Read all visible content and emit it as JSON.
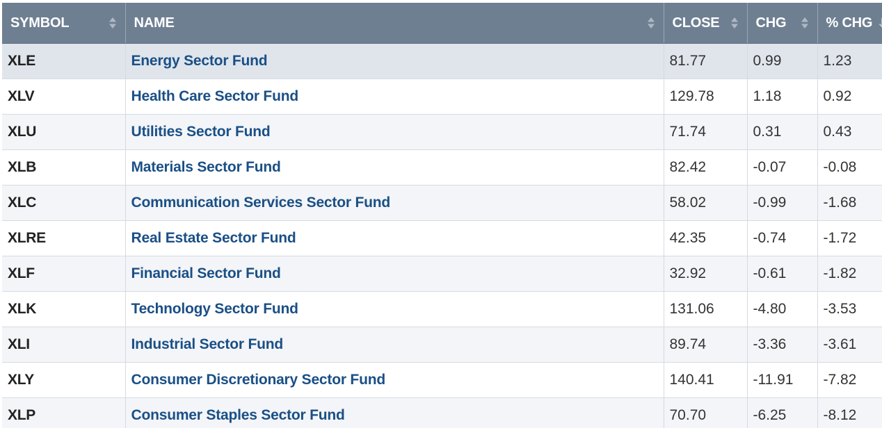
{
  "table": {
    "columns": [
      {
        "key": "symbol",
        "label": "SYMBOL",
        "sort_icon": "sort-both-icon"
      },
      {
        "key": "name",
        "label": "NAME",
        "sort_icon": "sort-both-icon"
      },
      {
        "key": "close",
        "label": "CLOSE",
        "sort_icon": "sort-both-icon"
      },
      {
        "key": "chg",
        "label": "CHG",
        "sort_icon": "sort-both-icon"
      },
      {
        "key": "pchg",
        "label": "% CHG",
        "sort_icon": "sort-desc-icon"
      }
    ],
    "rows": [
      {
        "symbol": "XLE",
        "name": "Energy Sector Fund",
        "close": "81.77",
        "chg": "0.99",
        "pchg": "1.23"
      },
      {
        "symbol": "XLV",
        "name": "Health Care Sector Fund",
        "close": "129.78",
        "chg": "1.18",
        "pchg": "0.92"
      },
      {
        "symbol": "XLU",
        "name": "Utilities Sector Fund",
        "close": "71.74",
        "chg": "0.31",
        "pchg": "0.43"
      },
      {
        "symbol": "XLB",
        "name": "Materials Sector Fund",
        "close": "82.42",
        "chg": "-0.07",
        "pchg": "-0.08"
      },
      {
        "symbol": "XLC",
        "name": "Communication Services Sector Fund",
        "close": "58.02",
        "chg": "-0.99",
        "pchg": "-1.68"
      },
      {
        "symbol": "XLRE",
        "name": "Real Estate Sector Fund",
        "close": "42.35",
        "chg": "-0.74",
        "pchg": "-1.72"
      },
      {
        "symbol": "XLF",
        "name": "Financial Sector Fund",
        "close": "32.92",
        "chg": "-0.61",
        "pchg": "-1.82"
      },
      {
        "symbol": "XLK",
        "name": "Technology Sector Fund",
        "close": "131.06",
        "chg": "-4.80",
        "pchg": "-3.53"
      },
      {
        "symbol": "XLI",
        "name": "Industrial Sector Fund",
        "close": "89.74",
        "chg": "-3.36",
        "pchg": "-3.61"
      },
      {
        "symbol": "XLY",
        "name": "Consumer Discretionary Sector Fund",
        "close": "140.41",
        "chg": "-11.91",
        "pchg": "-7.82"
      },
      {
        "symbol": "XLP",
        "name": "Consumer Staples Sector Fund",
        "close": "70.70",
        "chg": "-6.25",
        "pchg": "-8.12"
      }
    ]
  },
  "colors": {
    "header_bg": "#6f7f92",
    "header_text": "#ffffff",
    "link": "#1a4f86",
    "row_odd": "#f3f5f8",
    "row_even": "#ffffff",
    "row_highlight": "#e0e5ec"
  }
}
